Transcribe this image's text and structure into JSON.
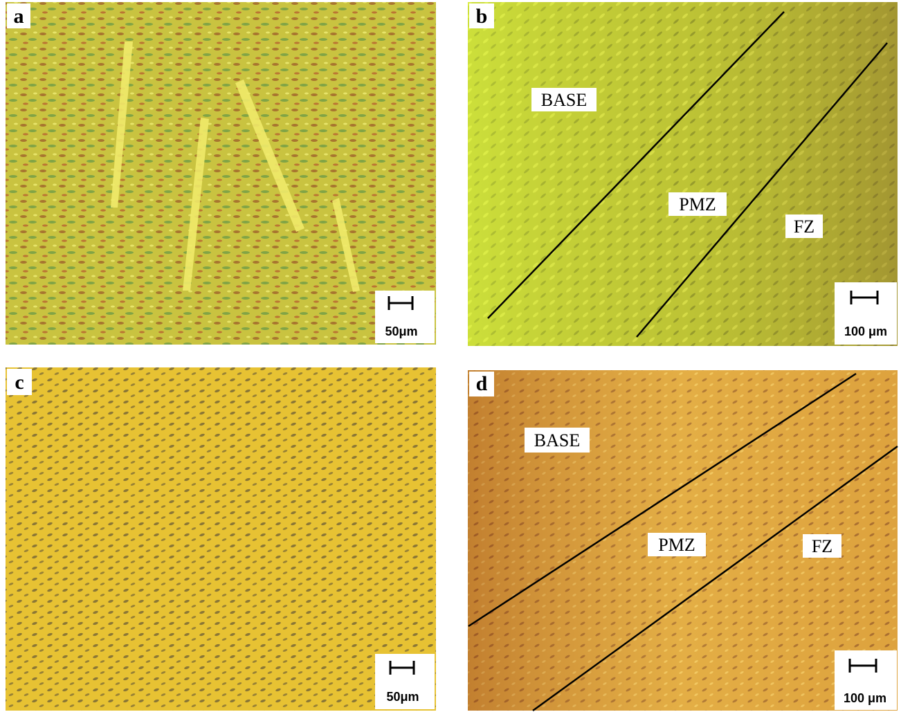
{
  "panels": [
    {
      "label": "a",
      "scale_bar": "50μm"
    },
    {
      "label": "b",
      "scale_bar": "100 μm",
      "zones": [
        "BASE",
        "PMZ",
        "FZ"
      ]
    },
    {
      "label": "c",
      "scale_bar": "50μm"
    },
    {
      "label": "d",
      "scale_bar": "100 μm",
      "zones": [
        "BASE",
        "PMZ",
        "FZ"
      ]
    }
  ]
}
